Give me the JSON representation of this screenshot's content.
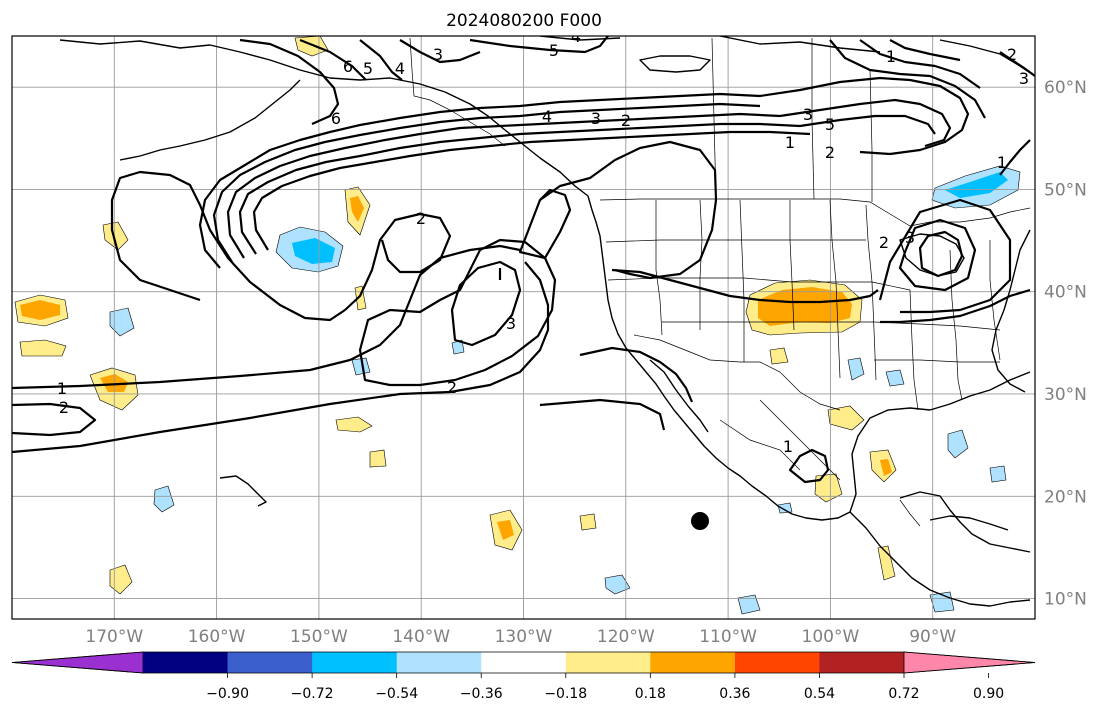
{
  "title": "2024080200 F000",
  "map": {
    "lat_range": [
      8,
      65
    ],
    "lon_range": [
      -180,
      -80
    ],
    "lon_ticks": [
      "170°W",
      "160°W",
      "150°W",
      "140°W",
      "130°W",
      "120°W",
      "110°W",
      "100°W",
      "90°W"
    ],
    "lat_ticks": [
      "60°N",
      "50°N",
      "40°N",
      "30°N",
      "20°N",
      "10°N"
    ],
    "grid": true,
    "contour_labels": [
      "1",
      "2",
      "3",
      "4",
      "5",
      "6"
    ]
  },
  "colorbar": {
    "ticks": [
      "−0.90",
      "−0.72",
      "−0.54",
      "−0.36",
      "−0.18",
      "0.18",
      "0.36",
      "0.54",
      "0.72",
      "0.90"
    ],
    "colors": [
      "#9b30d0",
      "#000080",
      "#3a5fcd",
      "#00bfff",
      "#aee2ff",
      "#ffffff",
      "#ffec8b",
      "#ffa500",
      "#ff4500",
      "#b22222",
      "#ff88aa"
    ]
  }
}
